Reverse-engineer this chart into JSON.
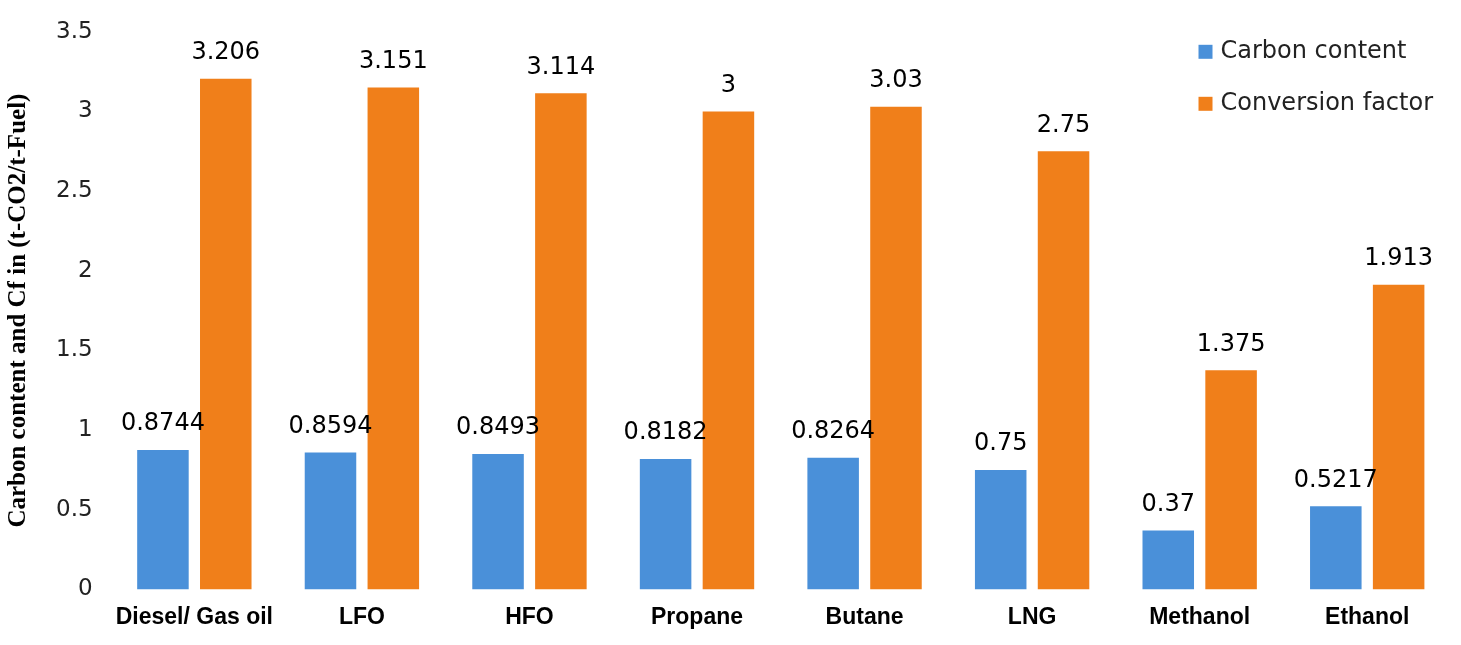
{
  "chart_data": {
    "type": "bar",
    "ylabel": "Carbon content and Cf in (t-CO2/t-Fuel)",
    "categories": [
      "Diesel/ Gas oil",
      "LFO",
      "HFO",
      "Propane",
      "Butane",
      "LNG",
      "Methanol",
      "Ethanol"
    ],
    "series": [
      {
        "name": "Carbon content",
        "color": "#4a90d9",
        "values": [
          0.8744,
          0.8594,
          0.8493,
          0.8182,
          0.8264,
          0.75,
          0.37,
          0.5217
        ]
      },
      {
        "name": "Conversion factor",
        "color": "#f07f1a",
        "values": [
          3.206,
          3.151,
          3.114,
          3,
          3.03,
          2.75,
          1.375,
          1.913
        ]
      }
    ],
    "ylim": [
      0,
      3.5
    ],
    "yticks": [
      0,
      0.5,
      1,
      1.5,
      2,
      2.5,
      3,
      3.5
    ],
    "grid": false,
    "legend": "top right",
    "data_labels": true
  }
}
